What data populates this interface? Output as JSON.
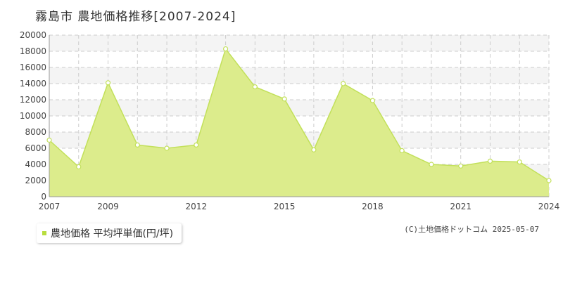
{
  "title": "霧島市 農地価格推移[2007-2024]",
  "legend_label": "農地価格 平均坪単価(円/坪)",
  "footer": "(C)土地価格ドットコム 2025-05-07",
  "colors": {
    "fill": "#dcec8c",
    "line": "#c2e05a",
    "marker_fill": "#ffffff",
    "grid": "#cccccc",
    "band": "#f4f4f4"
  },
  "chart_data": {
    "type": "area",
    "title": "霧島市 農地価格推移[2007-2024]",
    "x": [
      2007,
      2008,
      2009,
      2010,
      2011,
      2012,
      2013,
      2014,
      2015,
      2016,
      2017,
      2018,
      2019,
      2020,
      2021,
      2022,
      2023,
      2024
    ],
    "x_tick_labels": [
      "2007",
      "2009",
      "2012",
      "2015",
      "2018",
      "2021",
      "2024"
    ],
    "series": [
      {
        "name": "農地価格 平均坪単価(円/坪)",
        "values": [
          7000,
          3700,
          14100,
          6400,
          6000,
          6400,
          18300,
          13600,
          12100,
          5800,
          14000,
          11900,
          5700,
          4000,
          3800,
          4400,
          4300,
          2000
        ]
      }
    ],
    "y_ticks": [
      0,
      2000,
      4000,
      6000,
      8000,
      10000,
      12000,
      14000,
      16000,
      18000,
      20000
    ],
    "ylim": [
      0,
      20000
    ],
    "xlim": [
      2007,
      2024
    ],
    "grid": true,
    "legend_position": "bottom-left"
  }
}
